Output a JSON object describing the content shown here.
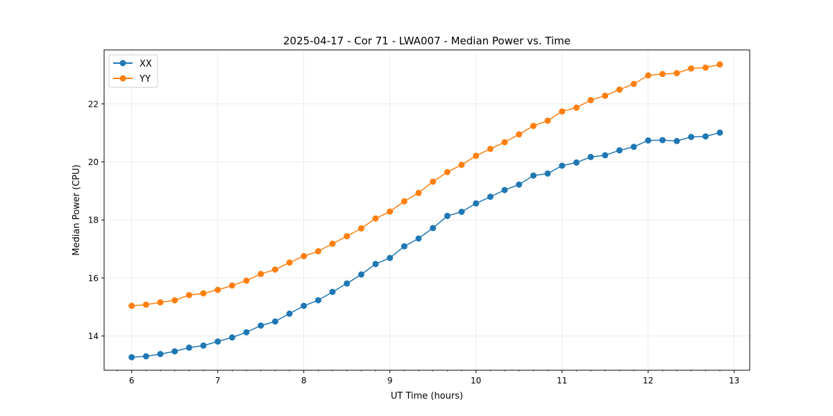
{
  "chart_data": {
    "type": "line",
    "title": "2025-04-17 - Cor 71 - LWA007 - Median Power vs. Time",
    "xlabel": "UT Time (hours)",
    "ylabel": "Median Power (CPU)",
    "xlim": [
      5.68,
      13.18
    ],
    "ylim": [
      12.82,
      23.86
    ],
    "xticks": [
      6,
      7,
      8,
      9,
      10,
      11,
      12,
      13
    ],
    "yticks": [
      14,
      16,
      18,
      20,
      22
    ],
    "grid": true,
    "legend_position": "top-left",
    "x": [
      6.0,
      6.1667,
      6.3333,
      6.5,
      6.6667,
      6.8333,
      7.0,
      7.1667,
      7.3333,
      7.5,
      7.6667,
      7.8333,
      8.0,
      8.1667,
      8.3333,
      8.5,
      8.6667,
      8.8333,
      9.0,
      9.1667,
      9.3333,
      9.5,
      9.6667,
      9.8333,
      10.0,
      10.1667,
      10.3333,
      10.5,
      10.6667,
      10.8333,
      11.0,
      11.1667,
      11.3333,
      11.5,
      11.6667,
      11.8333,
      12.0,
      12.1667,
      12.3333,
      12.5,
      12.6667,
      12.8333
    ],
    "series": [
      {
        "name": "XX",
        "color": "#1f77b4",
        "values": [
          13.27,
          13.3,
          13.38,
          13.47,
          13.6,
          13.67,
          13.81,
          13.95,
          14.13,
          14.36,
          14.5,
          14.77,
          15.04,
          15.23,
          15.52,
          15.81,
          16.12,
          16.48,
          16.69,
          17.09,
          17.36,
          17.72,
          18.14,
          18.28,
          18.57,
          18.8,
          19.03,
          19.22,
          19.53,
          19.6,
          19.87,
          19.98,
          20.17,
          20.23,
          20.4,
          20.52,
          20.74,
          20.75,
          20.72,
          20.86,
          20.88,
          21.01
        ]
      },
      {
        "name": "YY",
        "color": "#ff7f0e",
        "values": [
          15.04,
          15.08,
          15.16,
          15.23,
          15.41,
          15.47,
          15.59,
          15.74,
          15.91,
          16.14,
          16.29,
          16.53,
          16.75,
          16.92,
          17.18,
          17.44,
          17.71,
          18.05,
          18.29,
          18.64,
          18.93,
          19.32,
          19.65,
          19.9,
          20.21,
          20.45,
          20.68,
          20.95,
          21.24,
          21.42,
          21.74,
          21.87,
          22.13,
          22.28,
          22.49,
          22.69,
          22.98,
          23.03,
          23.06,
          23.22,
          23.25,
          23.36
        ]
      }
    ]
  }
}
